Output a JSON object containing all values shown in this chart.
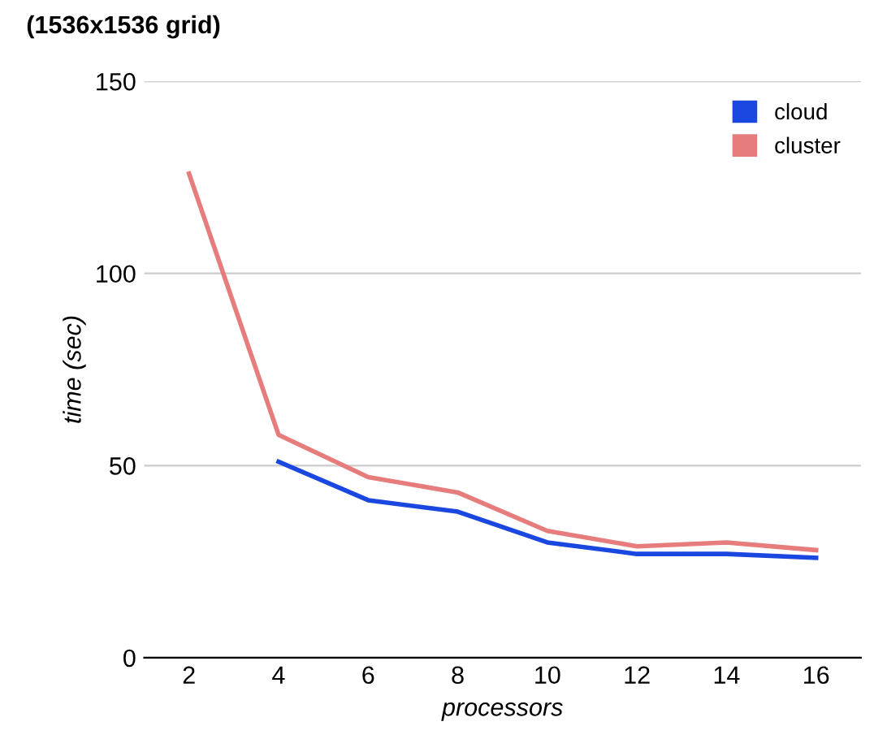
{
  "chart_data": {
    "type": "line",
    "title": "(1536x1536 grid)",
    "xlabel": "processors",
    "ylabel": "time (sec)",
    "categories": [
      "2",
      "4",
      "6",
      "8",
      "10",
      "12",
      "14",
      "16"
    ],
    "series": [
      {
        "name": "cloud",
        "color": "#1a47e0",
        "values": [
          null,
          51,
          41,
          38,
          30,
          27,
          27,
          26
        ]
      },
      {
        "name": "cluster",
        "color": "#e67c7c",
        "values": [
          126,
          58,
          47,
          43,
          33,
          29,
          30,
          28
        ]
      }
    ],
    "ylim": [
      0,
      150
    ],
    "yticks": [
      0,
      50,
      100,
      150
    ],
    "grid": "y",
    "legend": "top right",
    "marker": "none",
    "line_style": "solid"
  }
}
